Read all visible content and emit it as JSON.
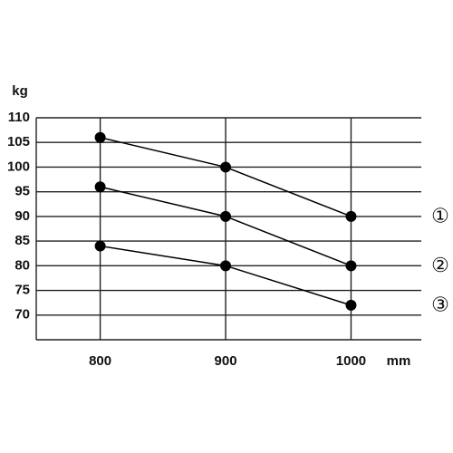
{
  "chart_data": {
    "type": "line",
    "y_unit": "kg",
    "x_unit": "mm",
    "x": [
      800,
      900,
      1000
    ],
    "xlim": [
      749,
      1056
    ],
    "xticks": [
      800,
      900,
      1000
    ],
    "ylim": [
      65,
      110
    ],
    "yticks": [
      70,
      75,
      80,
      85,
      90,
      95,
      100,
      105,
      110
    ],
    "grid": true,
    "series": [
      {
        "name": "①",
        "color": "#000000",
        "values": [
          106,
          100,
          90
        ]
      },
      {
        "name": "②",
        "color": "#000000",
        "values": [
          96,
          90,
          80
        ]
      },
      {
        "name": "③",
        "color": "#000000",
        "values": [
          84,
          80,
          72
        ]
      }
    ]
  }
}
